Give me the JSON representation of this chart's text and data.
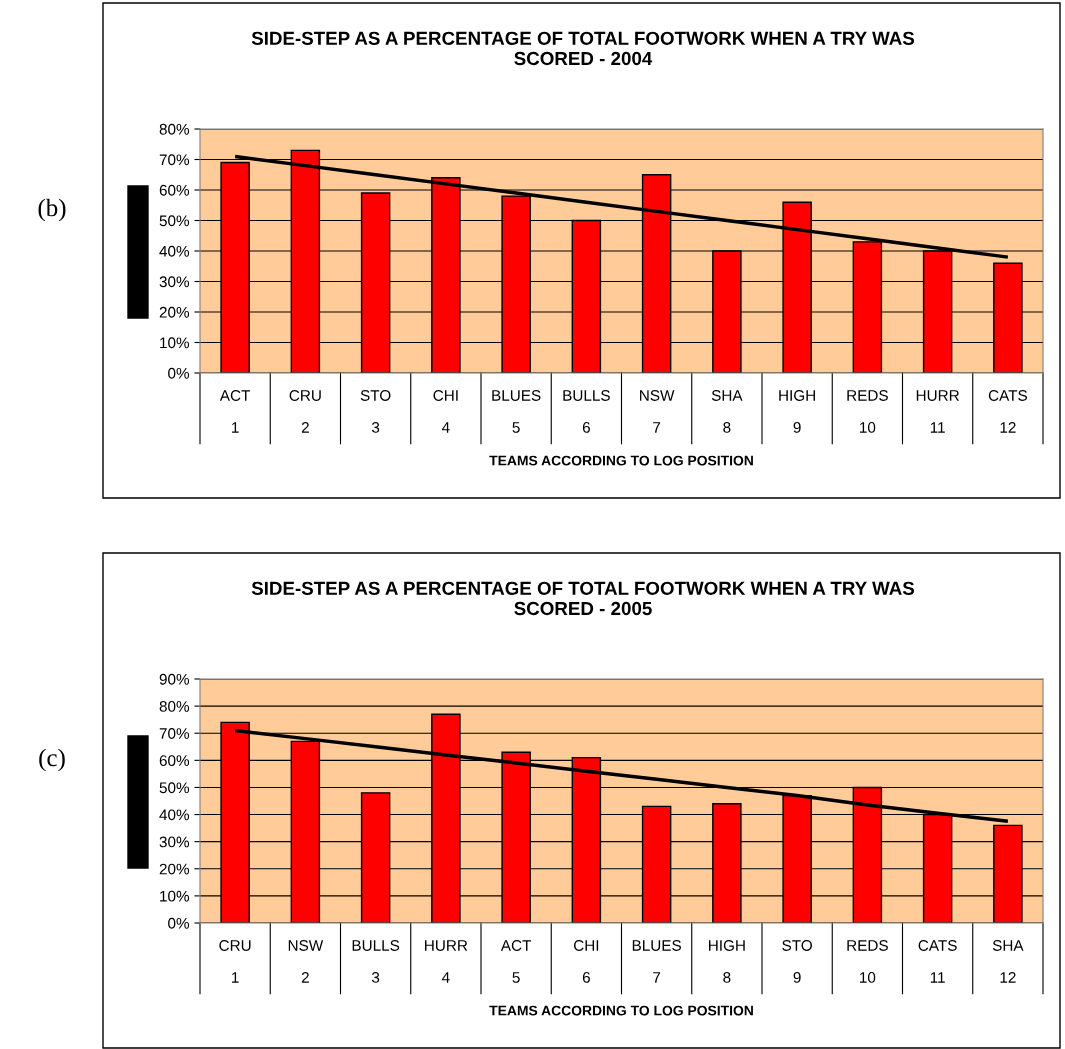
{
  "chart_data": [
    {
      "type": "bar",
      "title": "SIDE-STEP AS A PERCENTAGE OF TOTAL FOOTWORK WHEN A TRY WAS\nSCORED - 2004",
      "xlabel": "TEAMS ACCORDING TO LOG POSITION",
      "annotations": [
        "(b)"
      ],
      "categories": [
        "ACT\n1",
        "CRU\n2",
        "STO\n3",
        "CHI\n4",
        "BLUES\n5",
        "BULLS\n6",
        "NSW\n7",
        "SHA\n8",
        "HIGH\n9",
        "REDS\n10",
        "HURR\n11",
        "CATS\n12"
      ],
      "series": [
        {
          "color": "#ff0000",
          "values": [
            69,
            73,
            59,
            64,
            58,
            50,
            65,
            40,
            56,
            43,
            40,
            36
          ]
        },
        {
          "type": "line",
          "color": "#000000",
          "values": [
            71,
            68,
            65,
            62,
            59,
            56,
            53,
            50,
            47,
            44,
            41,
            38
          ]
        }
      ],
      "ylim": [
        0,
        80
      ],
      "yticks": [
        {
          "value": 0,
          "label": "0%"
        },
        {
          "value": 10,
          "label": "10%"
        },
        {
          "value": 20,
          "label": "20%"
        },
        {
          "value": 30,
          "label": "30%"
        },
        {
          "value": 40,
          "label": "40%"
        },
        {
          "value": 50,
          "label": "50%"
        },
        {
          "value": 60,
          "label": "60%"
        },
        {
          "value": 70,
          "label": "70%"
        },
        {
          "value": 80,
          "label": "80%"
        }
      ],
      "grid": "y",
      "legend": false
    },
    {
      "type": "bar",
      "title": "SIDE-STEP AS A PERCENTAGE OF TOTAL FOOTWORK WHEN A TRY WAS\nSCORED - 2005",
      "xlabel": "TEAMS ACCORDING TO LOG POSITION",
      "annotations": [
        "(c)"
      ],
      "categories": [
        "CRU\n1",
        "NSW\n2",
        "BULLS\n3",
        "HURR\n4",
        "ACT\n5",
        "CHI\n6",
        "BLUES\n7",
        "HIGH\n8",
        "STO\n9",
        "REDS\n10",
        "CATS\n11",
        "SHA\n12"
      ],
      "series": [
        {
          "color": "#ff0000",
          "values": [
            74,
            67,
            48,
            77,
            63,
            61,
            43,
            44,
            47,
            50,
            40,
            36
          ]
        },
        {
          "type": "line",
          "color": "#000000",
          "values": [
            71,
            68,
            65,
            62,
            59,
            56,
            53,
            50,
            47,
            43.5,
            40.5,
            37.5
          ]
        }
      ],
      "ylim": [
        0,
        90
      ],
      "yticks": [
        {
          "value": 0,
          "label": "0%"
        },
        {
          "value": 10,
          "label": "10%"
        },
        {
          "value": 20,
          "label": "20%"
        },
        {
          "value": 30,
          "label": "30%"
        },
        {
          "value": 40,
          "label": "40%"
        },
        {
          "value": 50,
          "label": "50%"
        },
        {
          "value": 60,
          "label": "60%"
        },
        {
          "value": 70,
          "label": "70%"
        },
        {
          "value": 80,
          "label": "80%"
        },
        {
          "value": 90,
          "label": "90%"
        }
      ],
      "grid": "y",
      "legend": false
    }
  ]
}
